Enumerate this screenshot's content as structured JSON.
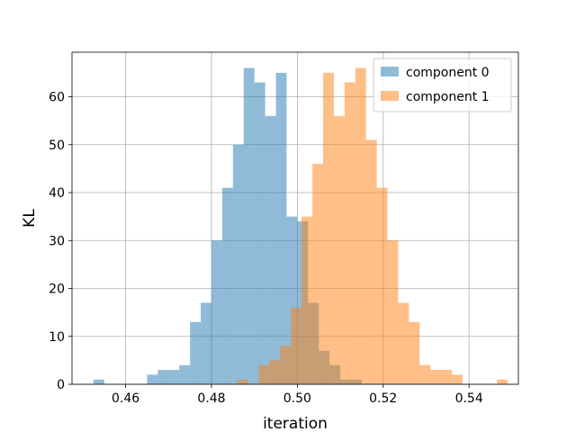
{
  "chart_data": {
    "type": "histogram",
    "title": "",
    "xlabel": "iteration",
    "ylabel": "KL",
    "xlim": [
      0.4475,
      0.5515
    ],
    "ylim": [
      0,
      69.3
    ],
    "grid": true,
    "legend_position": "top-right",
    "x_ticks": [
      0.46,
      0.48,
      0.5,
      0.52,
      0.54
    ],
    "y_ticks": [
      0,
      10,
      20,
      30,
      40,
      50,
      60
    ],
    "series": [
      {
        "name": "component 0",
        "color": "#1f77b4",
        "opacity": 0.5,
        "bins": [
          {
            "x0": 0.4525,
            "x1": 0.455,
            "count": 1
          },
          {
            "x0": 0.465,
            "x1": 0.4675,
            "count": 2
          },
          {
            "x0": 0.4675,
            "x1": 0.47,
            "count": 3
          },
          {
            "x0": 0.47,
            "x1": 0.4725,
            "count": 3
          },
          {
            "x0": 0.4725,
            "x1": 0.475,
            "count": 4
          },
          {
            "x0": 0.475,
            "x1": 0.4775,
            "count": 13
          },
          {
            "x0": 0.4775,
            "x1": 0.48,
            "count": 17
          },
          {
            "x0": 0.48,
            "x1": 0.4825,
            "count": 30
          },
          {
            "x0": 0.4825,
            "x1": 0.485,
            "count": 41
          },
          {
            "x0": 0.485,
            "x1": 0.4875,
            "count": 50
          },
          {
            "x0": 0.4875,
            "x1": 0.49,
            "count": 66
          },
          {
            "x0": 0.49,
            "x1": 0.4925,
            "count": 63
          },
          {
            "x0": 0.4925,
            "x1": 0.495,
            "count": 56
          },
          {
            "x0": 0.495,
            "x1": 0.4975,
            "count": 65
          },
          {
            "x0": 0.4975,
            "x1": 0.5,
            "count": 35
          },
          {
            "x0": 0.5,
            "x1": 0.5025,
            "count": 34
          },
          {
            "x0": 0.5025,
            "x1": 0.505,
            "count": 17
          },
          {
            "x0": 0.505,
            "x1": 0.5075,
            "count": 7
          },
          {
            "x0": 0.5075,
            "x1": 0.51,
            "count": 4
          },
          {
            "x0": 0.51,
            "x1": 0.5125,
            "count": 1
          },
          {
            "x0": 0.5125,
            "x1": 0.515,
            "count": 1
          }
        ]
      },
      {
        "name": "component 1",
        "color": "#ff7f0e",
        "opacity": 0.5,
        "bins": [
          {
            "x0": 0.486,
            "x1": 0.4885,
            "count": 1
          },
          {
            "x0": 0.491,
            "x1": 0.4935,
            "count": 4
          },
          {
            "x0": 0.4935,
            "x1": 0.496,
            "count": 5
          },
          {
            "x0": 0.496,
            "x1": 0.4985,
            "count": 8
          },
          {
            "x0": 0.4985,
            "x1": 0.501,
            "count": 16
          },
          {
            "x0": 0.501,
            "x1": 0.5035,
            "count": 35
          },
          {
            "x0": 0.5035,
            "x1": 0.506,
            "count": 46
          },
          {
            "x0": 0.506,
            "x1": 0.5085,
            "count": 65
          },
          {
            "x0": 0.5085,
            "x1": 0.511,
            "count": 56
          },
          {
            "x0": 0.511,
            "x1": 0.5135,
            "count": 63
          },
          {
            "x0": 0.5135,
            "x1": 0.516,
            "count": 66
          },
          {
            "x0": 0.516,
            "x1": 0.5185,
            "count": 51
          },
          {
            "x0": 0.5185,
            "x1": 0.521,
            "count": 41
          },
          {
            "x0": 0.521,
            "x1": 0.5235,
            "count": 30
          },
          {
            "x0": 0.5235,
            "x1": 0.526,
            "count": 17
          },
          {
            "x0": 0.526,
            "x1": 0.5285,
            "count": 13
          },
          {
            "x0": 0.5285,
            "x1": 0.531,
            "count": 4
          },
          {
            "x0": 0.531,
            "x1": 0.5335,
            "count": 3
          },
          {
            "x0": 0.5335,
            "x1": 0.536,
            "count": 3
          },
          {
            "x0": 0.536,
            "x1": 0.5385,
            "count": 2
          },
          {
            "x0": 0.5465,
            "x1": 0.549,
            "count": 1
          }
        ]
      }
    ]
  }
}
